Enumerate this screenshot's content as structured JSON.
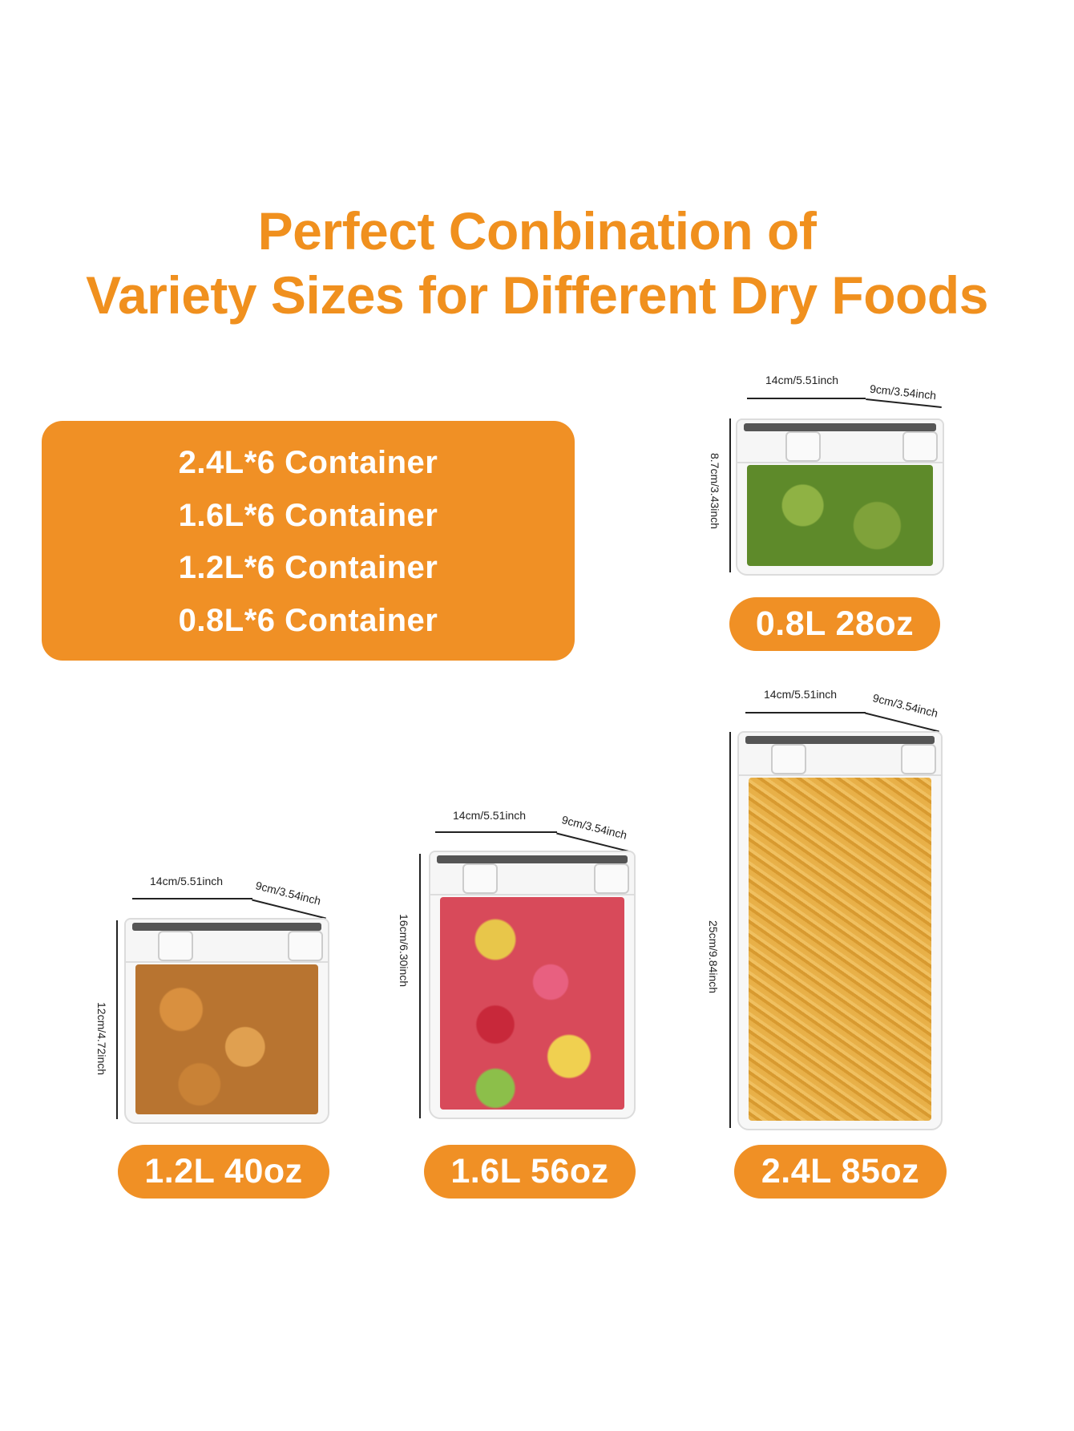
{
  "title": {
    "line1": "Perfect Conbination of",
    "line2": "Variety Sizes for Different Dry Foods"
  },
  "colors": {
    "accent": "#F09025",
    "title": "#F0901E"
  },
  "summary": [
    "2.4L*6 Container",
    "1.6L*6 Container",
    "1.2L*6 Container",
    "0.8L*6 Container"
  ],
  "containers": [
    {
      "label": "0.8L 28oz",
      "width": "14cm/5.51inch",
      "depth": "9cm/3.54inch",
      "height": "8.7cm/3.43inch",
      "food": "green star biscuits"
    },
    {
      "label": "1.2L 40oz",
      "width": "14cm/5.51inch",
      "depth": "9cm/3.54inch",
      "height": "12cm/4.72inch",
      "food": "cookies"
    },
    {
      "label": "1.6L 56oz",
      "width": "14cm/5.51inch",
      "depth": "9cm/3.54inch",
      "height": "16cm/6.30inch",
      "food": "colorful star crackers"
    },
    {
      "label": "2.4L 85oz",
      "width": "14cm/5.51inch",
      "depth": "9cm/3.54inch",
      "height": "25cm/9.84inch",
      "food": "fusilli pasta"
    }
  ]
}
